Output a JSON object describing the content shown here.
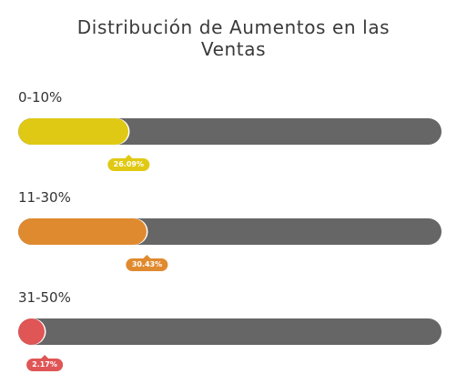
{
  "chart_data": {
    "type": "bar",
    "orientation": "horizontal",
    "title": "Distribución de Aumentos en las Ventas",
    "title_lines": [
      "Distribución de Aumentos en las",
      "Ventas"
    ],
    "categories": [
      "0-10%",
      "11-30%",
      "31-50%"
    ],
    "values": [
      26.09,
      30.43,
      2.17
    ],
    "value_labels": [
      "26.09%",
      "30.43%",
      "2.17%"
    ],
    "max": 100,
    "colors": [
      "#E0C914",
      "#E08A30",
      "#E05555"
    ],
    "track_color": "#666666",
    "grid": false,
    "legend": "none"
  }
}
